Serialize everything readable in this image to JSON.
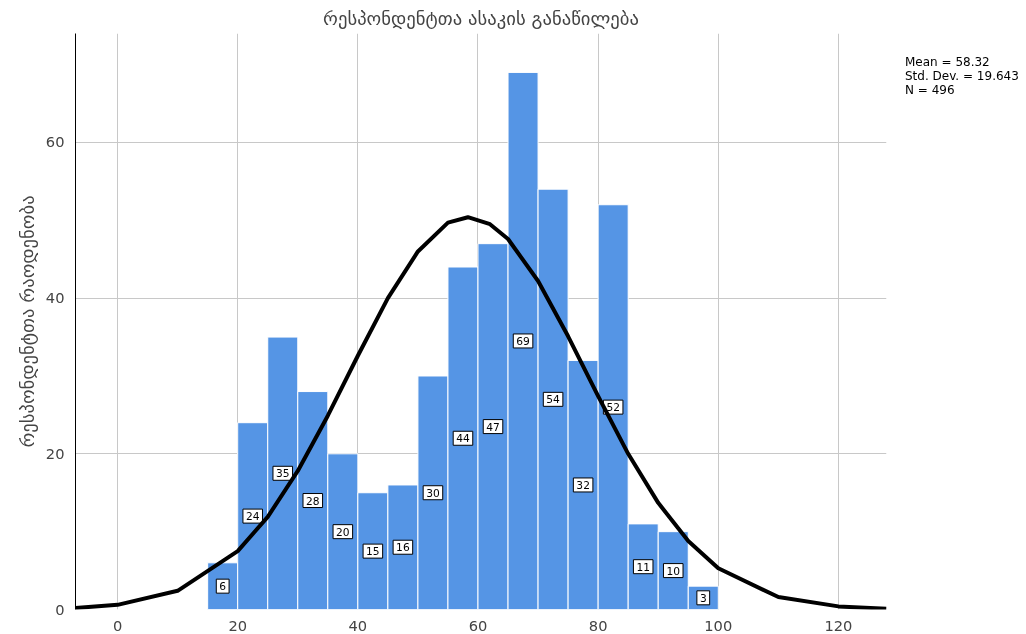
{
  "chart_data": {
    "type": "histogram",
    "title": "რესპონდენტთა ასაკის განაწილება",
    "ylabel": "რესპონდენტთა რაოდენობა",
    "annotations": [
      "Mean = 58.32",
      "Std. Dev. = 19.643",
      "N = 496"
    ],
    "xlim": [
      -7,
      128
    ],
    "ylim": [
      0,
      74
    ],
    "xticks": [
      0,
      20,
      40,
      60,
      80,
      100,
      120
    ],
    "yticks": [
      0,
      20,
      40,
      60
    ],
    "grid": true,
    "series": [
      {
        "color": "#5595e5",
        "bins": [
          15,
          20,
          25,
          30,
          35,
          40,
          45,
          50,
          55,
          60,
          65,
          70,
          75,
          80,
          85,
          90,
          95,
          100
        ],
        "values": [
          6,
          24,
          35,
          28,
          20,
          15,
          16,
          30,
          44,
          47,
          69,
          54,
          32,
          52,
          11,
          10,
          3
        ],
        "value_labels": [
          "6",
          "24",
          "35",
          "28",
          "20",
          "15",
          "16",
          "30",
          "44",
          "47",
          "69",
          "54",
          "32",
          "52",
          "11",
          "10",
          "3"
        ]
      },
      {
        "type": "line",
        "color": "#000000",
        "x": [
          -7,
          0,
          10,
          20,
          25,
          30,
          35,
          40,
          45,
          50,
          55,
          58.32,
          62,
          65,
          70,
          75,
          80,
          85,
          90,
          95,
          100,
          110,
          120,
          128
        ],
        "values": [
          0.2,
          0.6,
          2.4,
          7.5,
          11.9,
          17.8,
          24.9,
          32.6,
          40.0,
          46.0,
          49.7,
          50.4,
          49.5,
          47.6,
          42.2,
          35.1,
          27.4,
          20.0,
          13.7,
          8.8,
          5.3,
          1.6,
          0.4,
          0.1
        ]
      }
    ]
  }
}
